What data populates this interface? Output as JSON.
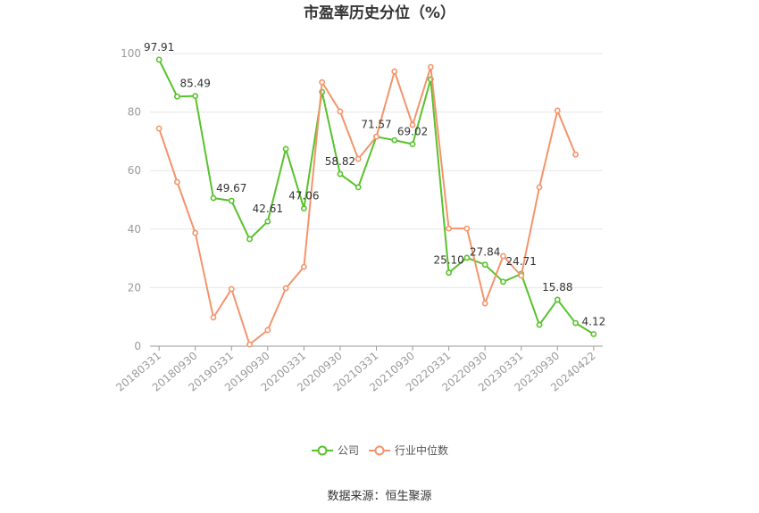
{
  "source": "数据来源：恒生聚源",
  "chart_data": {
    "type": "line",
    "title": "市盈率历史分位（%）",
    "categories": [
      "20180331",
      "",
      "20180930",
      "",
      "20190331",
      "",
      "20190930",
      "",
      "20200331",
      "",
      "20200930",
      "",
      "20210331",
      "",
      "20210930",
      "",
      "20220331",
      "",
      "20220930",
      "",
      "20230331",
      "",
      "20230930",
      "",
      "20240422"
    ],
    "ylim": [
      0,
      100
    ],
    "yticks": [
      0,
      20,
      40,
      60,
      80,
      100
    ],
    "grid": "horizontal",
    "legend": "bottom",
    "series": [
      {
        "name": "公司",
        "color": "#58c22c",
        "values": [
          97.91,
          85.3,
          85.49,
          50.6,
          49.67,
          36.6,
          42.61,
          67.4,
          47.06,
          86.9,
          58.82,
          54.3,
          71.57,
          70.4,
          69.02,
          91.2,
          25.1,
          30.2,
          27.84,
          22.0,
          24.71,
          7.3,
          15.88,
          7.9,
          4.12
        ],
        "labels": [
          "97.91",
          "",
          "85.49",
          "",
          "49.67",
          "",
          "42.61",
          "",
          "47.06",
          "",
          "58.82",
          "",
          "71.57",
          "",
          "69.02",
          "",
          "25.10",
          "",
          "27.84",
          "",
          "24.71",
          "",
          "15.88",
          "",
          "4.12"
        ]
      },
      {
        "name": "行业中位数",
        "color": "#f4946b",
        "values": [
          74.4,
          56.1,
          38.7,
          9.8,
          19.5,
          0.6,
          5.5,
          19.8,
          27.1,
          90.2,
          80.2,
          64.0,
          71.6,
          93.9,
          75.6,
          95.4,
          40.2,
          40.2,
          14.6,
          30.8,
          24.1,
          54.3,
          80.5,
          65.5,
          null
        ]
      }
    ]
  }
}
